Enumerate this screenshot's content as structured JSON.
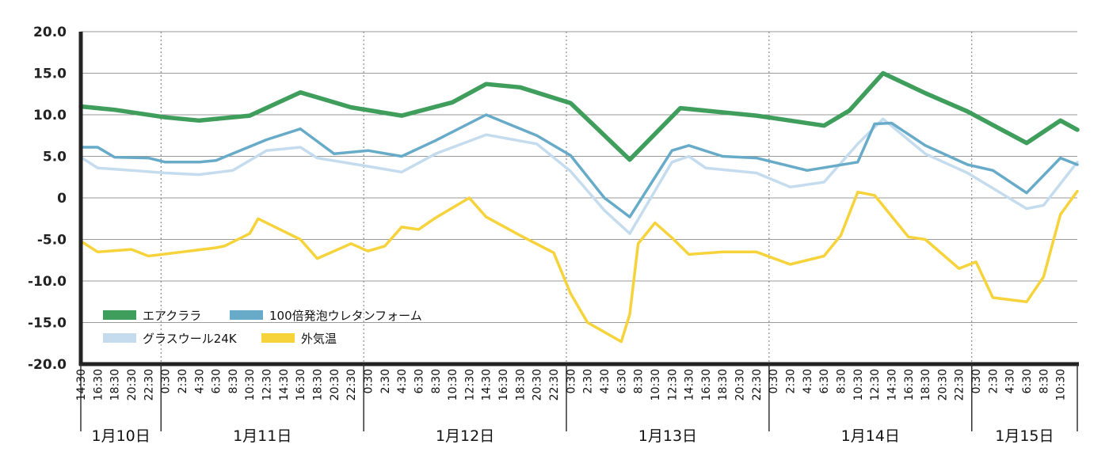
{
  "chart_data": {
    "type": "line",
    "title": "",
    "xlabel": "",
    "ylabel": "",
    "ylim": [
      -20,
      20
    ],
    "xlim": [
      "1月10日 14:30",
      "1月15日 12:30"
    ],
    "y_ticks": [
      "20.0",
      "15.0",
      "10.0",
      "5.0",
      "0",
      "-5.0",
      "-10.0",
      "-15.0",
      "-20.0"
    ],
    "legend_position": "lower-left",
    "grid": "horizontal solid, vertical dotted at day boundaries",
    "days": [
      {
        "label": "1月10日",
        "ticks": [
          "14:30",
          "16:30",
          "18:30",
          "20:30",
          "22:30"
        ]
      },
      {
        "label": "1月11日",
        "ticks": [
          "0:30",
          "2:30",
          "4:30",
          "6:30",
          "8:30",
          "10:30",
          "12:30",
          "14:30",
          "16:30",
          "18:30",
          "20:30",
          "22:30"
        ]
      },
      {
        "label": "1月12日",
        "ticks": [
          "0:30",
          "2:30",
          "4:30",
          "6:30",
          "8:30",
          "10:30",
          "12:30",
          "14:30",
          "16:30",
          "18:30",
          "20:30",
          "22:30"
        ]
      },
      {
        "label": "1月13日",
        "ticks": [
          "0:30",
          "2:30",
          "4:30",
          "6:30",
          "8:30",
          "10:30",
          "12:30",
          "14:30",
          "16:30",
          "18:30",
          "20:30",
          "22:30"
        ]
      },
      {
        "label": "1月14日",
        "ticks": [
          "0:30",
          "2:30",
          "4:30",
          "6:30",
          "8:30",
          "10:30",
          "12:30",
          "14:30",
          "16:30",
          "18:30",
          "20:30",
          "22:30"
        ]
      },
      {
        "label": "1月15日",
        "ticks": [
          "0:30",
          "2:30",
          "4:30",
          "6:30",
          "8:30",
          "10:30"
        ]
      }
    ],
    "series": [
      {
        "name": "エアクララ",
        "color": "#3f9e5c",
        "points": [
          [
            "1月10日 14:30",
            11.0
          ],
          [
            "1月10日 18:30",
            10.6
          ],
          [
            "1月11日 0:30",
            9.7
          ],
          [
            "1月11日 4:30",
            9.3
          ],
          [
            "1月11日 10:30",
            9.9
          ],
          [
            "1月11日 16:30",
            12.7
          ],
          [
            "1月11日 22:30",
            10.9
          ],
          [
            "1月12日 4:30",
            9.9
          ],
          [
            "1月12日 10:30",
            11.5
          ],
          [
            "1月12日 14:30",
            13.7
          ],
          [
            "1月12日 18:30",
            13.3
          ],
          [
            "1月13日 0:30",
            11.4
          ],
          [
            "1月13日 7:30",
            4.6
          ],
          [
            "1月13日 13:30",
            10.8
          ],
          [
            "1月13日 22:30",
            9.9
          ],
          [
            "1月14日 0:30",
            9.6
          ],
          [
            "1月14日 6:30",
            8.7
          ],
          [
            "1月14日 9:30",
            10.5
          ],
          [
            "1月14日 13:30",
            15.0
          ],
          [
            "1月14日 18:30",
            12.6
          ],
          [
            "1月14日 23:30",
            10.4
          ],
          [
            "1月15日 6:30",
            6.6
          ],
          [
            "1月15日 10:30",
            9.3
          ],
          [
            "1月15日 12:30",
            8.2
          ]
        ]
      },
      {
        "name": "100倍発泡ウレタンフォーム",
        "color": "#67abc9",
        "points": [
          [
            "1月10日 14:30",
            6.1
          ],
          [
            "1月10日 16:30",
            6.1
          ],
          [
            "1月10日 18:30",
            4.9
          ],
          [
            "1月10日 22:30",
            4.8
          ],
          [
            "1月11日 0:30",
            4.3
          ],
          [
            "1月11日 4:30",
            4.3
          ],
          [
            "1月11日 6:30",
            4.5
          ],
          [
            "1月11日 12:30",
            7.0
          ],
          [
            "1月11日 16:30",
            8.3
          ],
          [
            "1月11日 20:30",
            5.3
          ],
          [
            "1月12日 0:30",
            5.7
          ],
          [
            "1月12日 4:30",
            5.0
          ],
          [
            "1月12日 8:30",
            6.9
          ],
          [
            "1月12日 14:30",
            10.0
          ],
          [
            "1月12日 20:30",
            7.5
          ],
          [
            "1月13日 0:30",
            5.1
          ],
          [
            "1月13日 4:30",
            0.0
          ],
          [
            "1月13日 7:30",
            -2.3
          ],
          [
            "1月13日 12:30",
            5.7
          ],
          [
            "1月13日 14:30",
            6.3
          ],
          [
            "1月13日 18:30",
            5.0
          ],
          [
            "1月13日 22:30",
            4.8
          ],
          [
            "1月14日 4:30",
            3.3
          ],
          [
            "1月14日 10:30",
            4.3
          ],
          [
            "1月14日 12:30",
            8.9
          ],
          [
            "1月14日 14:30",
            9.0
          ],
          [
            "1月14日 18:30",
            6.3
          ],
          [
            "1月14日 23:30",
            4.0
          ],
          [
            "1月15日 2:30",
            3.3
          ],
          [
            "1月15日 6:30",
            0.6
          ],
          [
            "1月15日 10:30",
            4.8
          ],
          [
            "1月15日 12:30",
            4.0
          ]
        ]
      },
      {
        "name": "グラスウール24K",
        "color": "#c5dcee",
        "points": [
          [
            "1月10日 14:30",
            4.9
          ],
          [
            "1月10日 16:30",
            3.6
          ],
          [
            "1月10日 20:30",
            3.3
          ],
          [
            "1月11日 0:30",
            3.0
          ],
          [
            "1月11日 4:30",
            2.8
          ],
          [
            "1月11日 8:30",
            3.3
          ],
          [
            "1月11日 12:30",
            5.7
          ],
          [
            "1月11日 16:30",
            6.1
          ],
          [
            "1月11日 18:30",
            4.8
          ],
          [
            "1月12日 0:30",
            3.8
          ],
          [
            "1月12日 4:30",
            3.1
          ],
          [
            "1月12日 8:30",
            5.3
          ],
          [
            "1月12日 14:30",
            7.6
          ],
          [
            "1月12日 20:30",
            6.5
          ],
          [
            "1月13日 0:30",
            3.2
          ],
          [
            "1月13日 4:30",
            -1.5
          ],
          [
            "1月13日 7:30",
            -4.3
          ],
          [
            "1月13日 12:30",
            4.3
          ],
          [
            "1月13日 14:30",
            5.0
          ],
          [
            "1月13日 16:30",
            3.6
          ],
          [
            "1月13日 22:30",
            3.0
          ],
          [
            "1月14日 2:30",
            1.3
          ],
          [
            "1月14日 6:30",
            1.9
          ],
          [
            "1月14日 10:30",
            6.5
          ],
          [
            "1月14日 13:30",
            9.5
          ],
          [
            "1月14日 18:30",
            5.3
          ],
          [
            "1月14日 23:30",
            3.0
          ],
          [
            "1月15日 6:30",
            -1.3
          ],
          [
            "1月15日 8:30",
            -0.9
          ],
          [
            "1月15日 12:30",
            4.3
          ]
        ]
      },
      {
        "name": "外気温",
        "color": "#f6d33a",
        "points": [
          [
            "1月10日 14:30",
            -5.2
          ],
          [
            "1月10日 16:30",
            -6.5
          ],
          [
            "1月10日 20:30",
            -6.2
          ],
          [
            "1月10日 22:30",
            -7.0
          ],
          [
            "1月11日 2:30",
            -6.5
          ],
          [
            "1月11日 6:30",
            -6.0
          ],
          [
            "1月11日 7:30",
            -5.8
          ],
          [
            "1月11日 10:30",
            -4.3
          ],
          [
            "1月11日 11:30",
            -2.5
          ],
          [
            "1月11日 13:30",
            -3.5
          ],
          [
            "1月11日 16:30",
            -5.0
          ],
          [
            "1月11日 18:30",
            -7.3
          ],
          [
            "1月11日 22:30",
            -5.5
          ],
          [
            "1月12日 0:30",
            -6.4
          ],
          [
            "1月12日 2:30",
            -5.8
          ],
          [
            "1月12日 4:30",
            -3.5
          ],
          [
            "1月12日 6:30",
            -3.8
          ],
          [
            "1月12日 8:30",
            -2.4
          ],
          [
            "1月12日 12:30",
            0.0
          ],
          [
            "1月12日 14:30",
            -2.3
          ],
          [
            "1月12日 18:30",
            -4.5
          ],
          [
            "1月12日 22:30",
            -6.6
          ],
          [
            "1月13日 0:30",
            -11.5
          ],
          [
            "1月13日 2:30",
            -15.0
          ],
          [
            "1月13日 6:30",
            -17.3
          ],
          [
            "1月13日 7:30",
            -14.0
          ],
          [
            "1月13日 8:30",
            -5.5
          ],
          [
            "1月13日 10:30",
            -3.0
          ],
          [
            "1月13日 12:30",
            -4.8
          ],
          [
            "1月13日 14:30",
            -6.8
          ],
          [
            "1月13日 18:30",
            -6.5
          ],
          [
            "1月13日 22:30",
            -6.5
          ],
          [
            "1月14日 2:30",
            -8.0
          ],
          [
            "1月14日 6:30",
            -7.0
          ],
          [
            "1月14日 8:30",
            -4.5
          ],
          [
            "1月14日 10:30",
            0.7
          ],
          [
            "1月14日 12:30",
            0.3
          ],
          [
            "1月14日 16:30",
            -4.7
          ],
          [
            "1月14日 18:30",
            -5.0
          ],
          [
            "1月14日 22:30",
            -8.5
          ],
          [
            "1月15日 0:30",
            -7.7
          ],
          [
            "1月15日 2:30",
            -12.0
          ],
          [
            "1月15日 6:30",
            -12.5
          ],
          [
            "1月15日 8:30",
            -9.5
          ],
          [
            "1月15日 10:30",
            -2.0
          ],
          [
            "1月15日 12:30",
            0.8
          ]
        ]
      }
    ]
  }
}
